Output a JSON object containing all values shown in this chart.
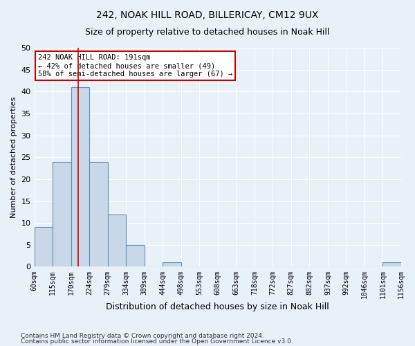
{
  "title1": "242, NOAK HILL ROAD, BILLERICAY, CM12 9UX",
  "title2": "Size of property relative to detached houses in Noak Hill",
  "xlabel": "Distribution of detached houses by size in Noak Hill",
  "ylabel": "Number of detached properties",
  "footer1": "Contains HM Land Registry data © Crown copyright and database right 2024.",
  "footer2": "Contains public sector information licensed under the Open Government Licence v3.0.",
  "annotation_line1": "242 NOAK HILL ROAD: 191sqm",
  "annotation_line2": "← 42% of detached houses are smaller (49)",
  "annotation_line3": "58% of semi-detached houses are larger (67) →",
  "bar_edges": [
    60,
    115,
    170,
    224,
    279,
    334,
    389,
    444,
    498,
    553,
    608,
    663,
    718,
    772,
    827,
    882,
    937,
    992,
    1046,
    1101,
    1156
  ],
  "bar_heights": [
    9,
    24,
    41,
    24,
    12,
    5,
    0,
    1,
    0,
    0,
    0,
    0,
    0,
    0,
    0,
    0,
    0,
    0,
    0,
    1
  ],
  "bar_color": "#c8d8e8",
  "bar_edge_color": "#6090b8",
  "property_size": 191,
  "vline_color": "#cc0000",
  "ylim": [
    0,
    50
  ],
  "yticks": [
    0,
    5,
    10,
    15,
    20,
    25,
    30,
    35,
    40,
    45,
    50
  ],
  "bg_color": "#e8f0f8",
  "annotation_box_color": "#ffffff",
  "annotation_border_color": "#cc0000"
}
